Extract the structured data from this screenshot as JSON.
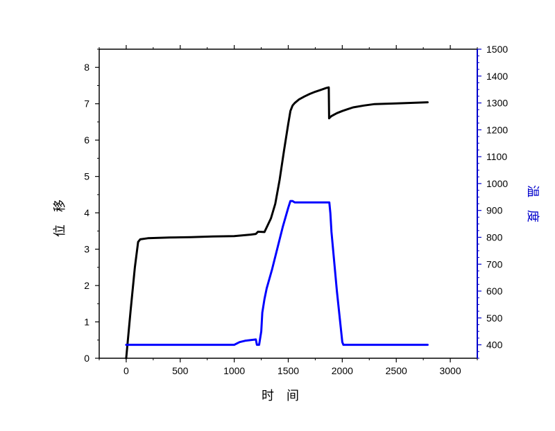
{
  "chart_data": {
    "type": "line",
    "xlabel": "时　间",
    "ylabel_left": "位　移",
    "ylabel_right": "温　度",
    "xlim": [
      -250,
      3250
    ],
    "ylim_left": [
      0,
      8.5
    ],
    "ylim_right": [
      350,
      1500
    ],
    "x_ticks": [
      0,
      500,
      1000,
      1500,
      2000,
      2500,
      3000
    ],
    "x_tick_labels": [
      "0",
      "500",
      "1000",
      "1500",
      "2000",
      "2500",
      "3000"
    ],
    "y_left_ticks": [
      0,
      1,
      2,
      3,
      4,
      5,
      6,
      7,
      8
    ],
    "y_left_tick_labels": [
      "0",
      "1",
      "2",
      "3",
      "4",
      "5",
      "6",
      "7",
      "8"
    ],
    "y_right_ticks": [
      400,
      500,
      600,
      700,
      800,
      900,
      1000,
      1100,
      1200,
      1300,
      1400,
      1500
    ],
    "y_right_tick_labels": [
      "400",
      "500",
      "600",
      "700",
      "800",
      "900",
      "1000",
      "1100",
      "1200",
      "1300",
      "1400",
      "1500"
    ],
    "grid": false,
    "legend": "none",
    "colors": {
      "left_axis": "#000000",
      "right_axis": "#0000cc",
      "displacement": "#000000",
      "temperature": "#0000ff"
    },
    "series": [
      {
        "axis": "left",
        "color": "#000000",
        "x": [
          0,
          40,
          80,
          110,
          130,
          200,
          400,
          600,
          800,
          1000,
          1150,
          1200,
          1220,
          1280,
          1300,
          1340,
          1380,
          1420,
          1460,
          1500,
          1520,
          1540,
          1560,
          1600,
          1650,
          1700,
          1750,
          1800,
          1850,
          1875,
          1878,
          1885,
          1900,
          1950,
          2000,
          2050,
          2100,
          2200,
          2300,
          2500,
          2700,
          2790
        ],
        "y": [
          0,
          1.3,
          2.5,
          3.2,
          3.27,
          3.3,
          3.32,
          3.33,
          3.35,
          3.36,
          3.4,
          3.42,
          3.48,
          3.47,
          3.6,
          3.85,
          4.25,
          4.9,
          5.7,
          6.45,
          6.8,
          6.95,
          7.02,
          7.12,
          7.2,
          7.27,
          7.33,
          7.38,
          7.43,
          7.45,
          6.6,
          6.62,
          6.66,
          6.74,
          6.8,
          6.85,
          6.9,
          6.95,
          6.99,
          7.01,
          7.03,
          7.04
        ]
      },
      {
        "axis": "right",
        "color": "#0000ff",
        "x": [
          0,
          500,
          1000,
          1050,
          1100,
          1200,
          1210,
          1220,
          1230,
          1250,
          1260,
          1280,
          1300,
          1350,
          1400,
          1450,
          1500,
          1520,
          1540,
          1560,
          1600,
          1700,
          1800,
          1880,
          1890,
          1900,
          1950,
          2000,
          2010,
          2200,
          2500,
          2790
        ],
        "y": [
          400,
          400,
          400,
          410,
          415,
          420,
          400,
          400,
          400,
          450,
          520,
          570,
          610,
          680,
          760,
          840,
          910,
          935,
          935,
          930,
          930,
          930,
          930,
          930,
          890,
          820,
          600,
          410,
          400,
          400,
          400,
          400
        ]
      }
    ]
  }
}
